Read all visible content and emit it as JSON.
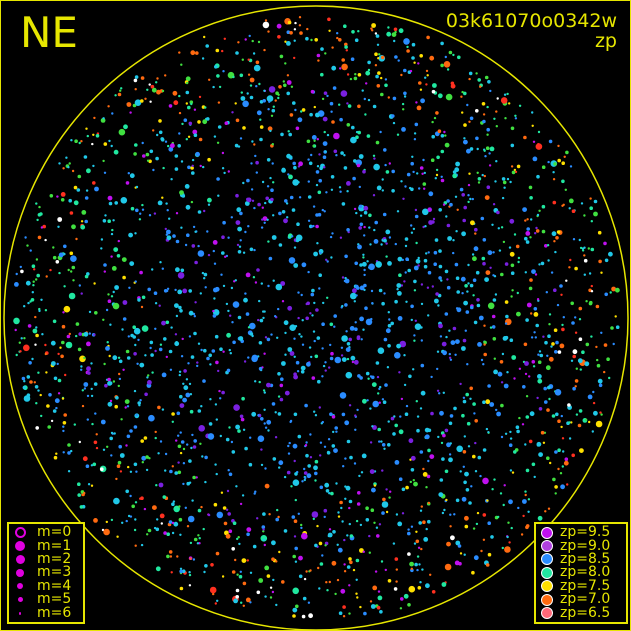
{
  "direction_label": "NE",
  "image_id_label": "03k61070o0342w",
  "mode_label": "zp",
  "colors": {
    "frame": "#e6e600",
    "background": "#000000",
    "m_marker": "#e000e0"
  },
  "chart_data": {
    "type": "scatter",
    "description_free": true,
    "magnitude_legend": [
      {
        "label": "m=0",
        "marker": "ring"
      },
      {
        "label": "m=1",
        "marker": "dot"
      },
      {
        "label": "m=2",
        "marker": "dot"
      },
      {
        "label": "m=3",
        "marker": "dot"
      },
      {
        "label": "m=4",
        "marker": "dot"
      },
      {
        "label": "m=5",
        "marker": "dot"
      },
      {
        "label": "m=6",
        "marker": "dot"
      }
    ],
    "zp_legend": [
      {
        "label": "zp=9.5",
        "color": "#c010f0"
      },
      {
        "label": "zp=9.0",
        "color": "#b040e0"
      },
      {
        "label": "zp=8.5",
        "color": "#2a8cff"
      },
      {
        "label": "zp=8.0",
        "color": "#20e8a0"
      },
      {
        "label": "zp=7.5",
        "color": "#ffe000"
      },
      {
        "label": "zp=7.0",
        "color": "#ff6a10"
      },
      {
        "label": "zp=6.5",
        "color": "#ff6878"
      }
    ]
  }
}
